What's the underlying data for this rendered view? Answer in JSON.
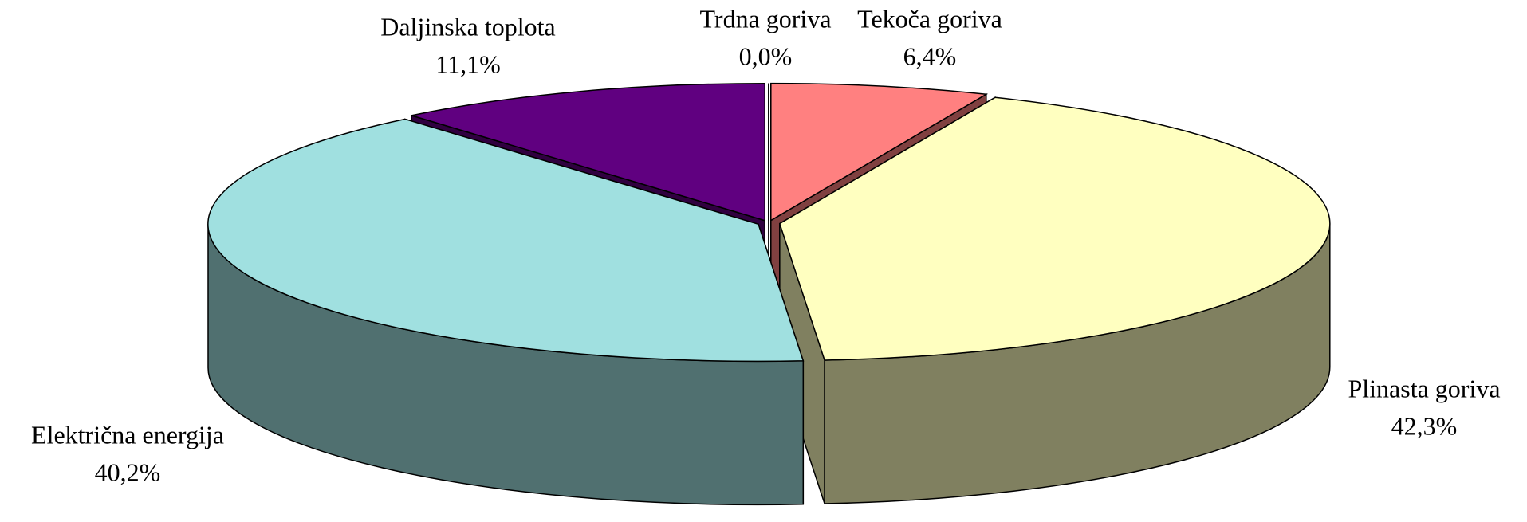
{
  "chart_data": {
    "type": "pie3d",
    "categories": [
      "Trdna goriva",
      "Tekoča goriva",
      "Plinasta goriva",
      "Električna energija",
      "Daljinska toplota"
    ],
    "values": [
      0.0,
      6.4,
      42.3,
      40.2,
      11.1
    ],
    "value_labels": [
      "0,0%",
      "6,4%",
      "42,3%",
      "40,2%",
      "11,1%"
    ],
    "colors": [
      "#404040",
      "#FF8080",
      "#FFFFC0",
      "#A0E0E0",
      "#600080"
    ]
  }
}
